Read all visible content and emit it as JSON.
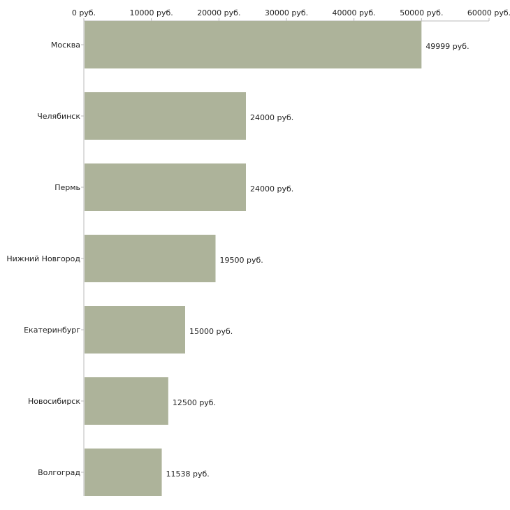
{
  "chart_data": {
    "type": "bar",
    "orientation": "horizontal",
    "title": "",
    "xlabel": "",
    "ylabel": "",
    "xlim": [
      0,
      60000
    ],
    "ticks": [
      0,
      10000,
      20000,
      30000,
      40000,
      50000,
      60000
    ],
    "tick_labels": [
      "0 руб.",
      "10000 руб.",
      "20000 руб.",
      "30000 руб.",
      "40000 руб.",
      "50000 руб.",
      "60000 руб."
    ],
    "categories": [
      "Москва",
      "Челябинск",
      "Пермь",
      "Нижний Новгород",
      "Екатеринбург",
      "Новосибирск",
      "Волгоград"
    ],
    "values": [
      49999,
      24000,
      24000,
      19500,
      15000,
      12500,
      11538
    ],
    "value_labels": [
      "49999 руб.",
      "24000 руб.",
      "24000 руб.",
      "19500 руб.",
      "15000 руб.",
      "12500 руб.",
      "11538 руб."
    ],
    "bar_color": "#adb39a",
    "axis_color": "#bbbbbb",
    "legend": "none",
    "grid": false
  }
}
